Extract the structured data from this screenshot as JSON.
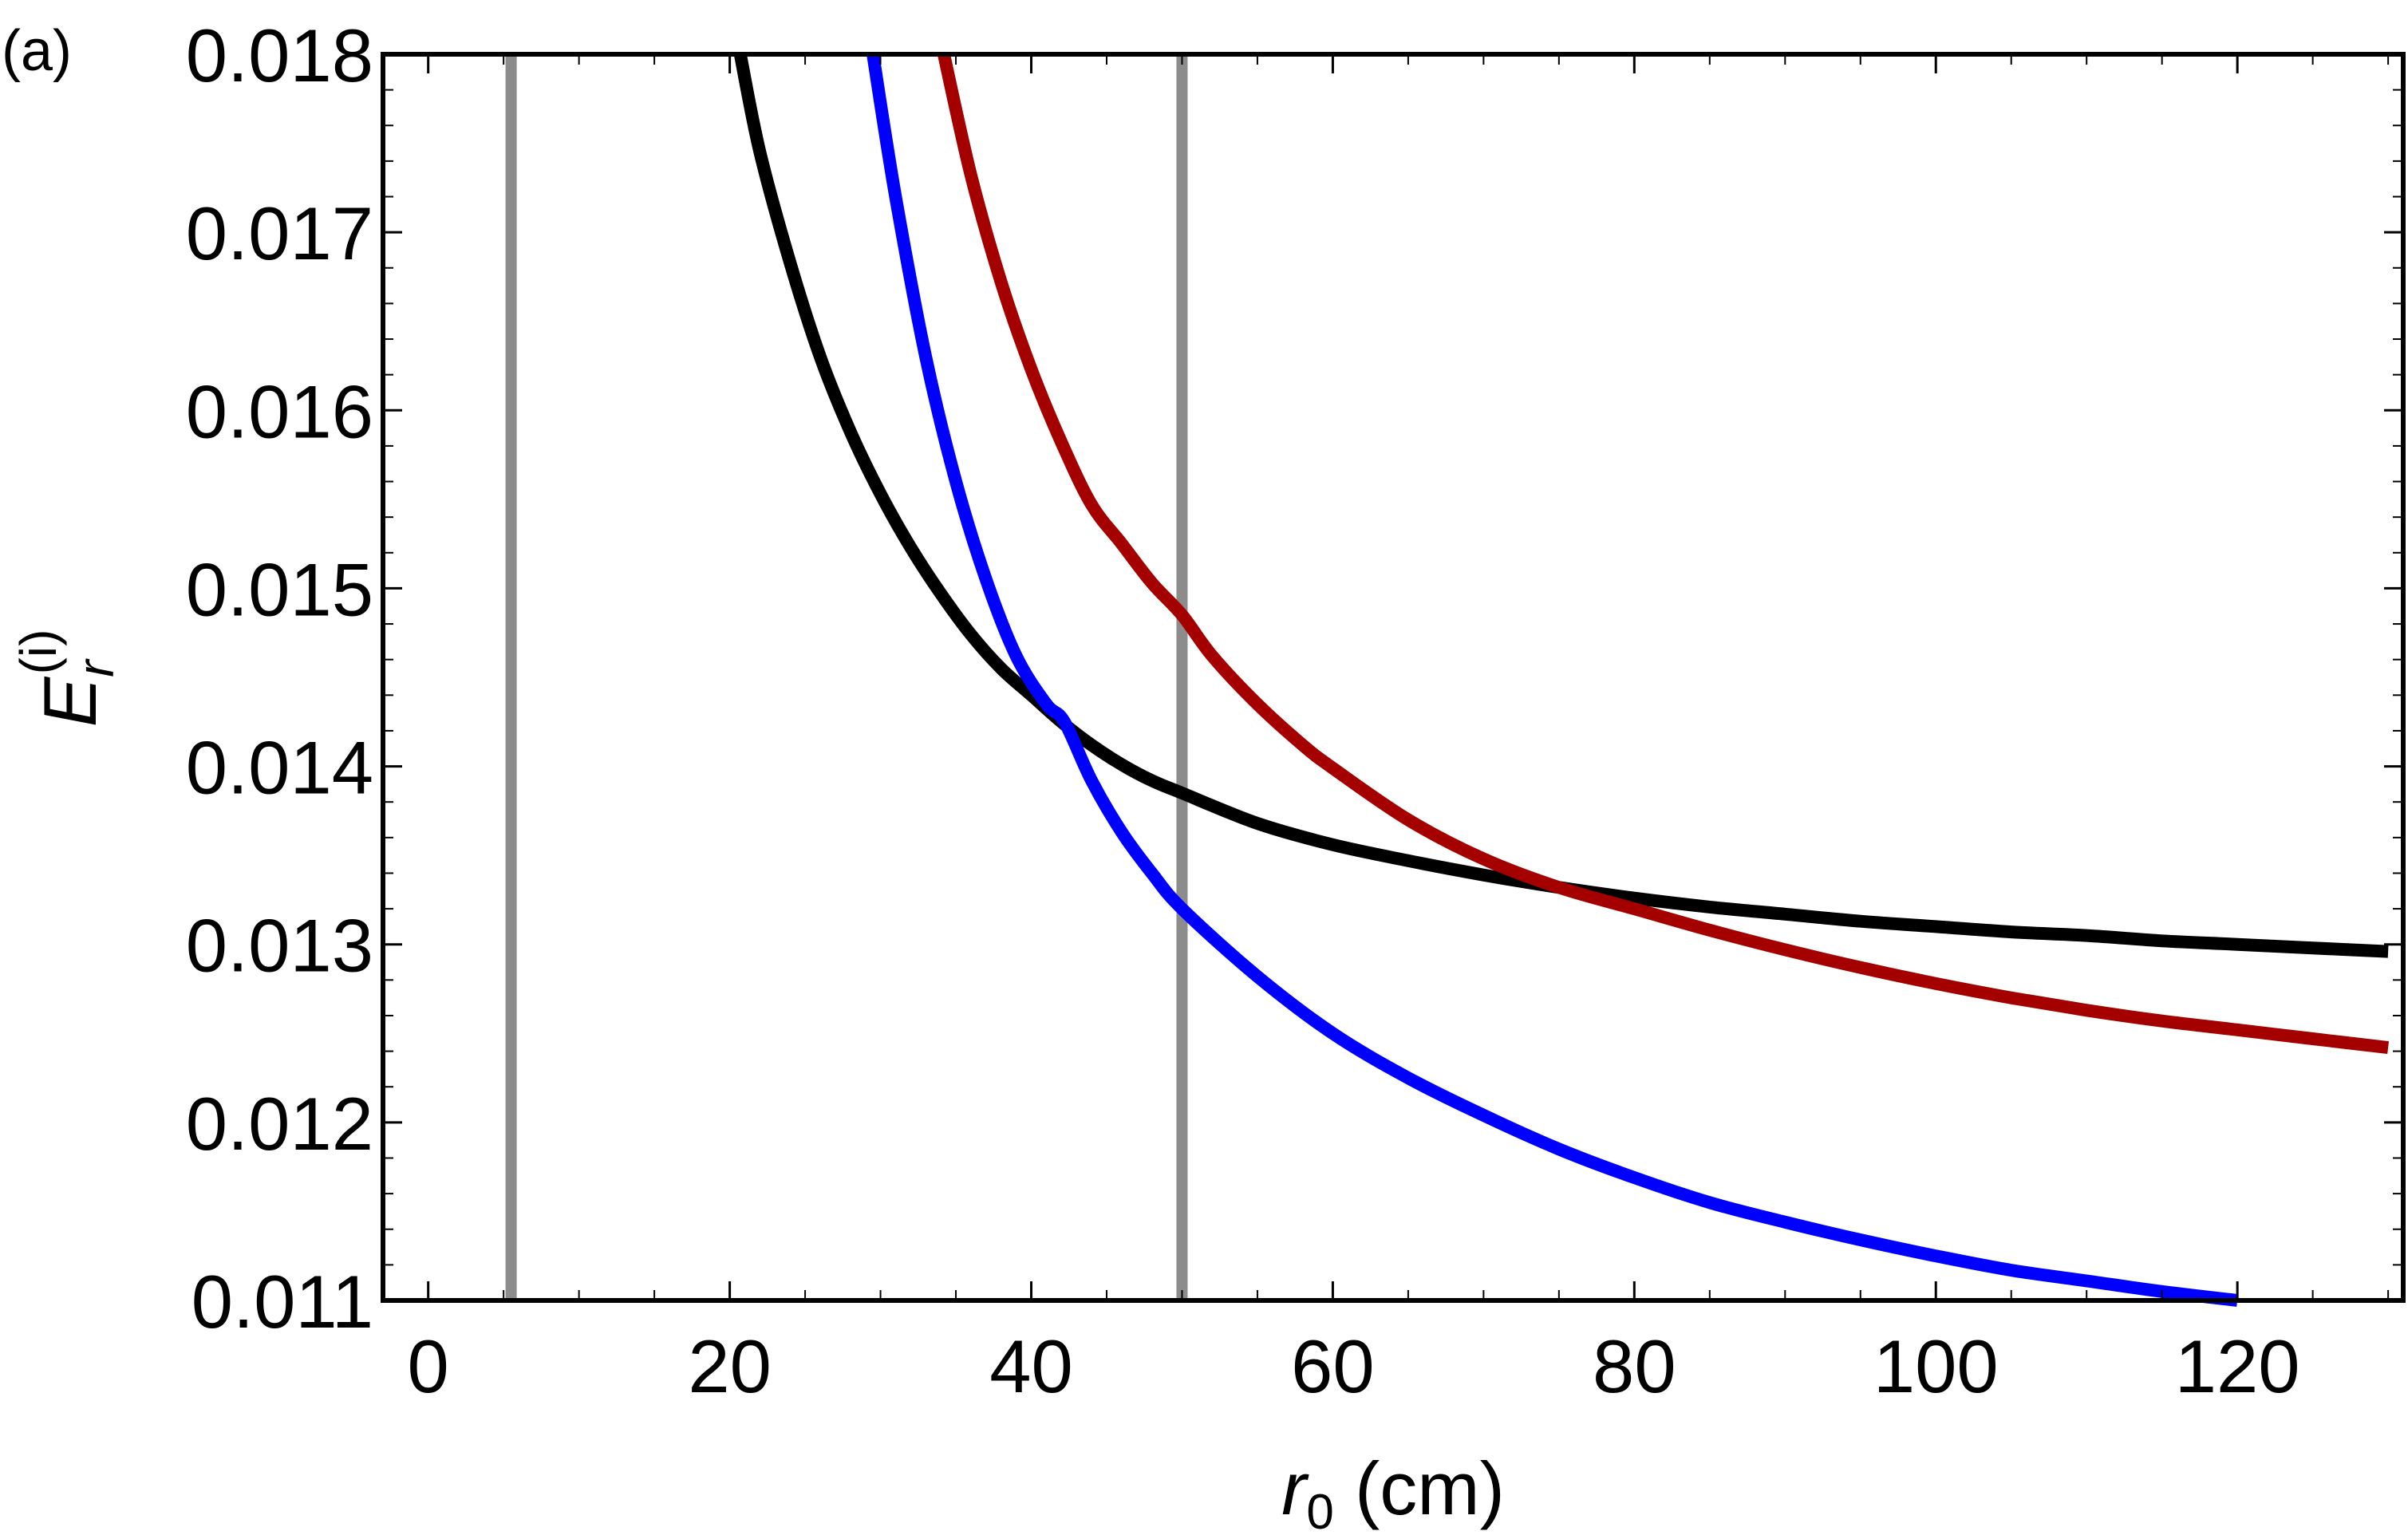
{
  "panel_label": "(a)",
  "chart_data": {
    "type": "line",
    "title": "",
    "xlabel": {
      "main": "r",
      "sub": "0",
      "units": " (cm)"
    },
    "ylabel": {
      "main": "E",
      "sub": "r",
      "sup": "(i)"
    },
    "xlim": [
      -3,
      131
    ],
    "ylim": [
      0.011,
      0.018
    ],
    "xticks": [
      0,
      20,
      40,
      60,
      80,
      100,
      120
    ],
    "xtick_labels": [
      "0",
      "20",
      "40",
      "60",
      "80",
      "100",
      "120"
    ],
    "yticks": [
      0.011,
      0.012,
      0.013,
      0.014,
      0.015,
      0.016,
      0.017,
      0.018
    ],
    "ytick_labels": [
      "0.011",
      "0.012",
      "0.013",
      "0.014",
      "0.015",
      "0.016",
      "0.017",
      "0.018"
    ],
    "grid": false,
    "reference_lines": [
      {
        "x": 5.5,
        "color": "#8c8c8c"
      },
      {
        "x": 50,
        "color": "#8c8c8c"
      }
    ],
    "series": [
      {
        "name": "black",
        "color": "#000000",
        "x": [
          20.7,
          22,
          24,
          26,
          28,
          30,
          32,
          34,
          36,
          38,
          40,
          42,
          44,
          46,
          48,
          50,
          55,
          60,
          65,
          70,
          75,
          80,
          85,
          90,
          95,
          100,
          105,
          110,
          115,
          120,
          125,
          130
        ],
        "y": [
          0.018,
          0.01745,
          0.01683,
          0.0163,
          0.01588,
          0.01553,
          0.01523,
          0.01497,
          0.01474,
          0.01455,
          0.0144,
          0.01425,
          0.01412,
          0.01401,
          0.01392,
          0.01385,
          0.01368,
          0.01356,
          0.01347,
          0.01339,
          0.01332,
          0.01326,
          0.01321,
          0.01317,
          0.01313,
          0.0131,
          0.01307,
          0.01305,
          0.01302,
          0.013,
          0.01298,
          0.01296
        ]
      },
      {
        "name": "blue",
        "color": "#0000ff",
        "x": [
          29.5,
          31,
          33,
          35,
          37,
          39,
          41,
          42.2,
          44,
          46,
          48,
          50,
          55,
          60,
          65,
          70,
          75,
          80,
          85,
          90,
          95,
          100,
          105,
          110,
          115,
          120
        ],
        "y": [
          0.018,
          0.0172,
          0.0163,
          0.0156,
          0.01505,
          0.01462,
          0.01435,
          0.01425,
          0.01392,
          0.01363,
          0.0134,
          0.0132,
          0.01282,
          0.0125,
          0.01225,
          0.01204,
          0.01185,
          0.01169,
          0.01155,
          0.01144,
          0.01134,
          0.01125,
          0.01117,
          0.01111,
          0.01105,
          0.011
        ]
      },
      {
        "name": "dark-red",
        "color": "#a50000",
        "x": [
          34.2,
          36,
          38,
          40,
          42,
          44,
          46,
          48,
          50,
          52,
          55,
          58,
          60,
          65,
          70,
          75,
          80,
          85,
          90,
          95,
          100,
          105,
          110,
          115,
          120,
          125,
          130
        ],
        "y": [
          0.018,
          0.01732,
          0.01672,
          0.01623,
          0.01582,
          0.01547,
          0.01525,
          0.01503,
          0.01485,
          0.01462,
          0.01435,
          0.01412,
          0.01399,
          0.0137,
          0.01348,
          0.01332,
          0.0132,
          0.01308,
          0.01297,
          0.01287,
          0.01278,
          0.0127,
          0.01263,
          0.01257,
          0.01252,
          0.01247,
          0.01242
        ]
      }
    ]
  }
}
